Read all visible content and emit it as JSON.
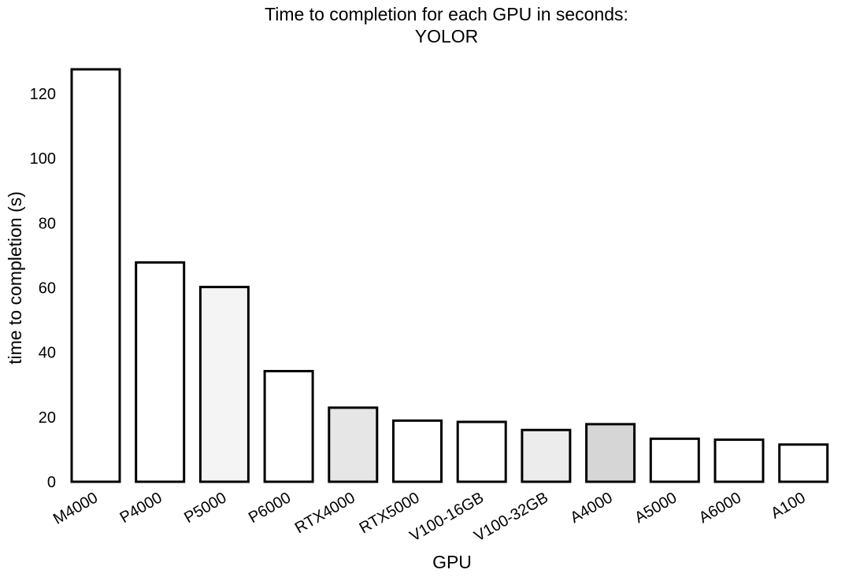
{
  "chart_data": {
    "type": "bar",
    "title": "Time to completion for each GPU in seconds:",
    "subtitle": "YOLOR",
    "xlabel": "GPU",
    "ylabel": "time to completion (s)",
    "categories": [
      "M4000",
      "P4000",
      "P5000",
      "P6000",
      "RTX4000",
      "RTX5000",
      "V100-16GB",
      "V100-32GB",
      "A4000",
      "A5000",
      "A6000",
      "A100"
    ],
    "values": [
      127.5,
      67.8,
      60.2,
      34.2,
      22.9,
      18.9,
      18.5,
      16.0,
      17.8,
      13.3,
      13.0,
      11.5
    ],
    "yticks": [
      0,
      20,
      40,
      60,
      80,
      100,
      120
    ],
    "ylim": [
      0,
      128
    ],
    "grid": false,
    "legend": "none",
    "colors": [
      "#ffffff",
      "#ffffff",
      "#f4f4f4",
      "#ffffff",
      "#e6e6e6",
      "#ffffff",
      "#ffffff",
      "#ececec",
      "#d6d6d6",
      "#ffffff",
      "#ffffff",
      "#ffffff"
    ]
  }
}
